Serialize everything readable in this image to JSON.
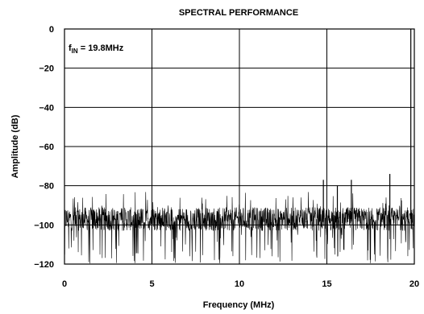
{
  "chart_data": {
    "type": "line",
    "title": "SPECTRAL PERFORMANCE",
    "xlabel": "Frequency (MHz)",
    "ylabel": "Amplitude (dB)",
    "annotation": {
      "prefix": "f",
      "subscript": "IN",
      "text": " = 19.8MHz"
    },
    "xlim": [
      0,
      20
    ],
    "ylim": [
      -120,
      0
    ],
    "x_ticks": [
      0,
      5,
      10,
      15,
      20
    ],
    "y_ticks": [
      0,
      -20,
      -40,
      -60,
      -80,
      -100,
      -120
    ],
    "x_tick_labels": [
      "0",
      "5",
      "10",
      "15",
      "20"
    ],
    "y_tick_labels": [
      "0",
      "−20",
      "−40",
      "−60",
      "−80",
      "−100",
      "−120"
    ],
    "grid": true,
    "noise_floor_db": -97,
    "spurs": [
      {
        "x": 14.8,
        "y": -77
      },
      {
        "x": 15.6,
        "y": -80
      },
      {
        "x": 16.4,
        "y": -77
      },
      {
        "x": 18.6,
        "y": -74
      },
      {
        "x": 19.8,
        "y": 0
      }
    ],
    "series": [
      {
        "color": "#000000"
      }
    ]
  }
}
